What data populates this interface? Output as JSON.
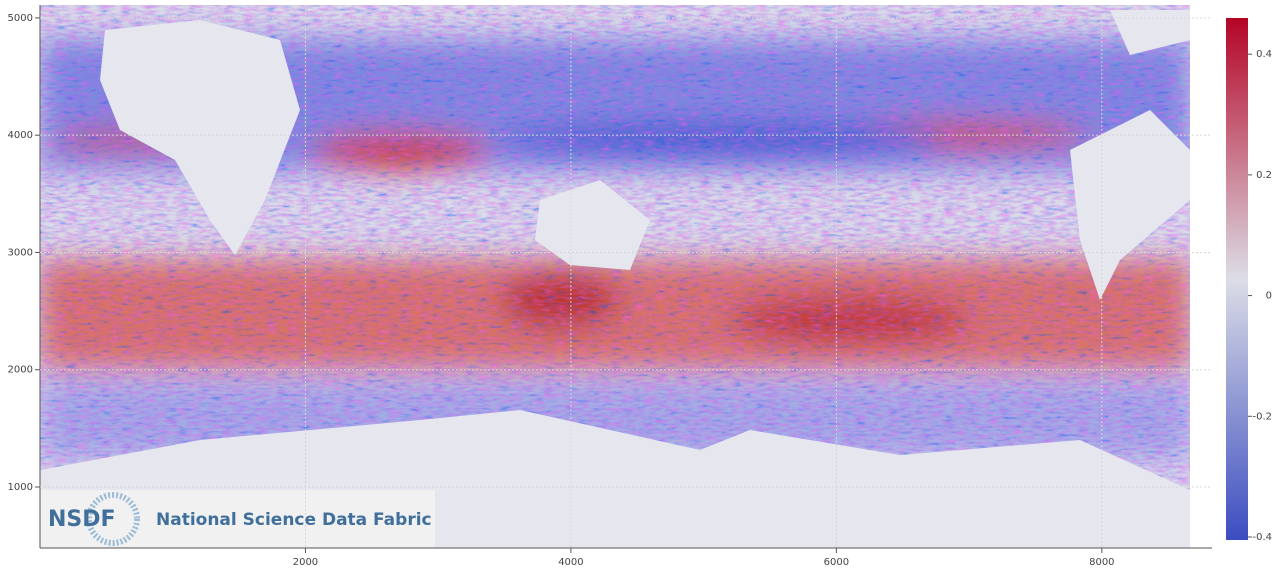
{
  "chart_data": {
    "type": "heatmap",
    "xlim": [
      0,
      8830
    ],
    "ylim": [
      480,
      5110
    ],
    "xticks": [
      2000,
      4000,
      6000,
      8000
    ],
    "yticks": [
      1000,
      2000,
      3000,
      4000,
      5000
    ],
    "grid": true,
    "colorbar": {
      "lim": [
        -0.405,
        0.46
      ],
      "ticks": [
        -0.4,
        -0.2,
        0,
        0.2,
        0.4
      ],
      "colors": [
        "#3b4cc0",
        "#dcdde6",
        "#b40426"
      ]
    },
    "logo": {
      "mark": "NSDF",
      "text": "National Science Data Fabric"
    }
  }
}
